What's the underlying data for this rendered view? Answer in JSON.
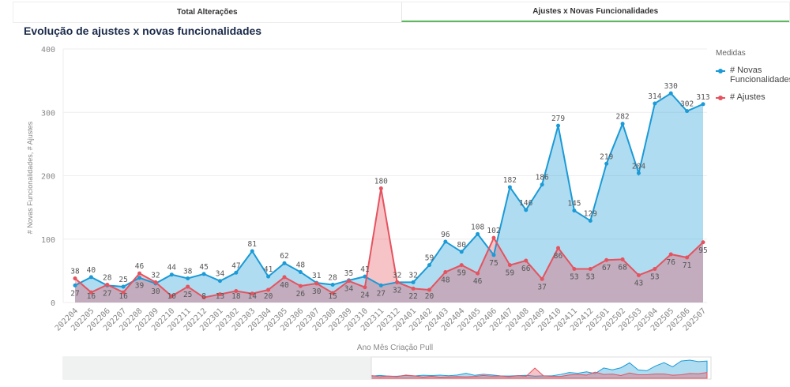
{
  "tabs": [
    {
      "label": "Total Alterações",
      "active": false
    },
    {
      "label": "Ajustes x Novas Funcionalidades",
      "active": true
    }
  ],
  "chart_title": "Evolução de ajustes x novas funcionalidades",
  "legend": {
    "title": "Medidas",
    "items": [
      "# Novas Funcionalidades",
      "# Ajustes"
    ]
  },
  "colors": {
    "novas": "#1a9ad6",
    "ajustes": "#e5535f",
    "active_tab": "#5cb85c"
  },
  "chart_data": {
    "type": "area",
    "xlabel": "Ano Mês Criação Pull",
    "ylabel": "# Novas Funcionalidades, # Ajustes",
    "ylim": [
      0,
      400
    ],
    "yticks": [
      0,
      100,
      200,
      300,
      400
    ],
    "grid": true,
    "legend_position": "right",
    "categories": [
      "202204",
      "202205",
      "202206",
      "202207",
      "202208",
      "202209",
      "202210",
      "202211",
      "202212",
      "202301",
      "202302",
      "202303",
      "202304",
      "202305",
      "202306",
      "202307",
      "202308",
      "202309",
      "202310",
      "202311",
      "202312",
      "202401",
      "202402",
      "202403",
      "202404",
      "202405",
      "202406",
      "202407",
      "202408",
      "202409",
      "202410",
      "202411",
      "202412",
      "202501",
      "202502",
      "202503",
      "202504",
      "202505",
      "202506",
      "202507"
    ],
    "series": [
      {
        "name": "# Novas Funcionalidades",
        "values": [
          27,
          40,
          27,
          25,
          39,
          30,
          44,
          38,
          45,
          34,
          47,
          81,
          41,
          62,
          48,
          31,
          28,
          35,
          41,
          27,
          32,
          32,
          59,
          96,
          80,
          108,
          75,
          182,
          146,
          186,
          279,
          145,
          129,
          219,
          282,
          204,
          314,
          330,
          302,
          313
        ]
      },
      {
        "name": "# Ajustes",
        "values": [
          38,
          16,
          28,
          16,
          46,
          32,
          10,
          25,
          8,
          13,
          18,
          14,
          20,
          40,
          26,
          30,
          15,
          34,
          24,
          180,
          32,
          22,
          20,
          48,
          59,
          46,
          102,
          59,
          66,
          37,
          86,
          53,
          53,
          67,
          68,
          43,
          53,
          76,
          71,
          95
        ]
      }
    ]
  }
}
